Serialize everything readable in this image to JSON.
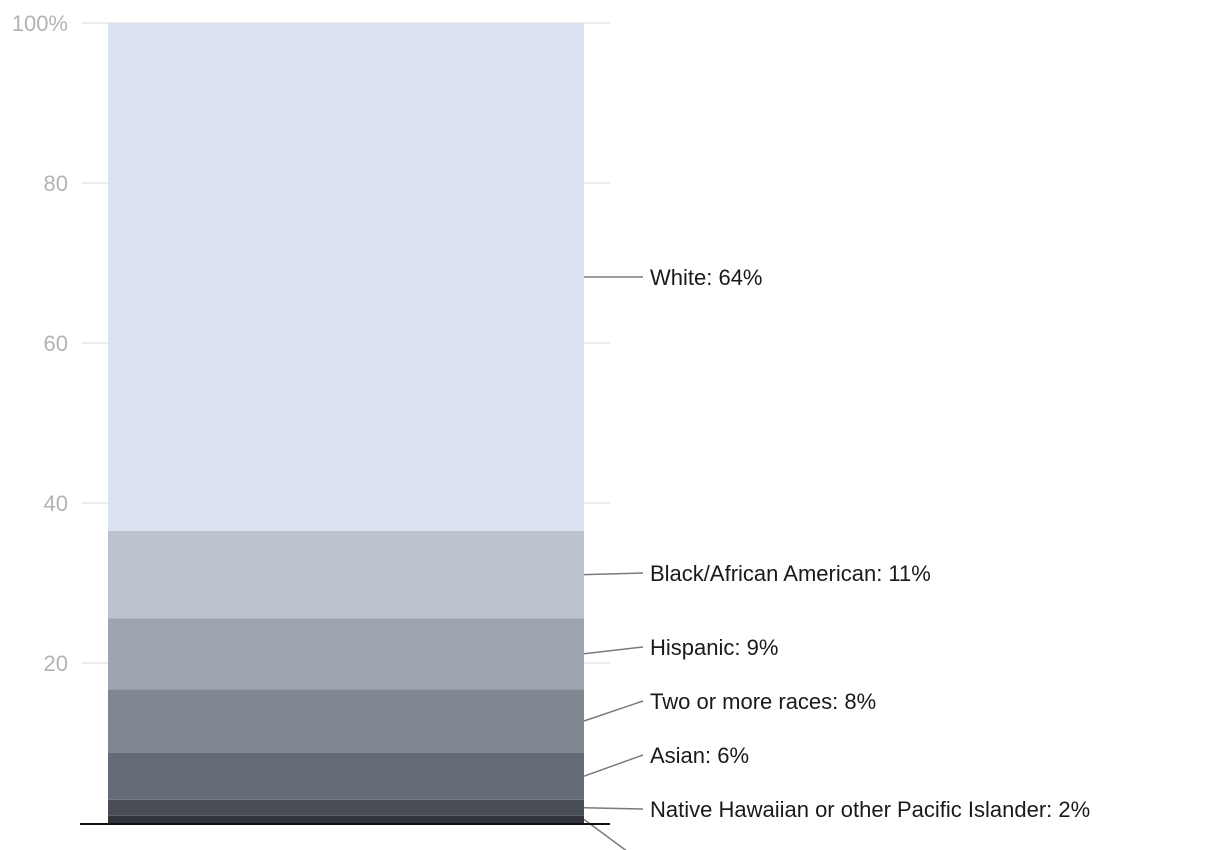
{
  "chart_data": {
    "type": "bar",
    "stacked": true,
    "categories": [
      ""
    ],
    "ylim": [
      0,
      100
    ],
    "yticks": [
      {
        "value": 100,
        "label": "100%"
      },
      {
        "value": 80,
        "label": "80"
      },
      {
        "value": 60,
        "label": "60"
      },
      {
        "value": 40,
        "label": "40"
      },
      {
        "value": 20,
        "label": "20"
      }
    ],
    "grid": true,
    "series": [
      {
        "name": "White",
        "value": 63.5,
        "label": "White: 64%",
        "color": "#dbe2ef"
      },
      {
        "name": "Black/African American",
        "value": 10.9,
        "label": "Black/African American: 11%",
        "color": "#bdc3ce"
      },
      {
        "name": "Hispanic",
        "value": 8.9,
        "label": "Hispanic: 9%",
        "color": "#9ea4b0"
      },
      {
        "name": "Two or more races",
        "value": 7.9,
        "label": "Two or more races: 8%",
        "color": "#818791"
      },
      {
        "name": "Asian",
        "value": 5.9,
        "label": "Asian: 6%",
        "color": "#656b76"
      },
      {
        "name": "Native Hawaiian or other Pacific Islander",
        "value": 2.0,
        "label": "Native Hawaiian or other Pacific Islander: 2%",
        "color": "#474c55"
      },
      {
        "name": "",
        "value": 0.9,
        "label": "",
        "color": "#30343a"
      }
    ]
  }
}
